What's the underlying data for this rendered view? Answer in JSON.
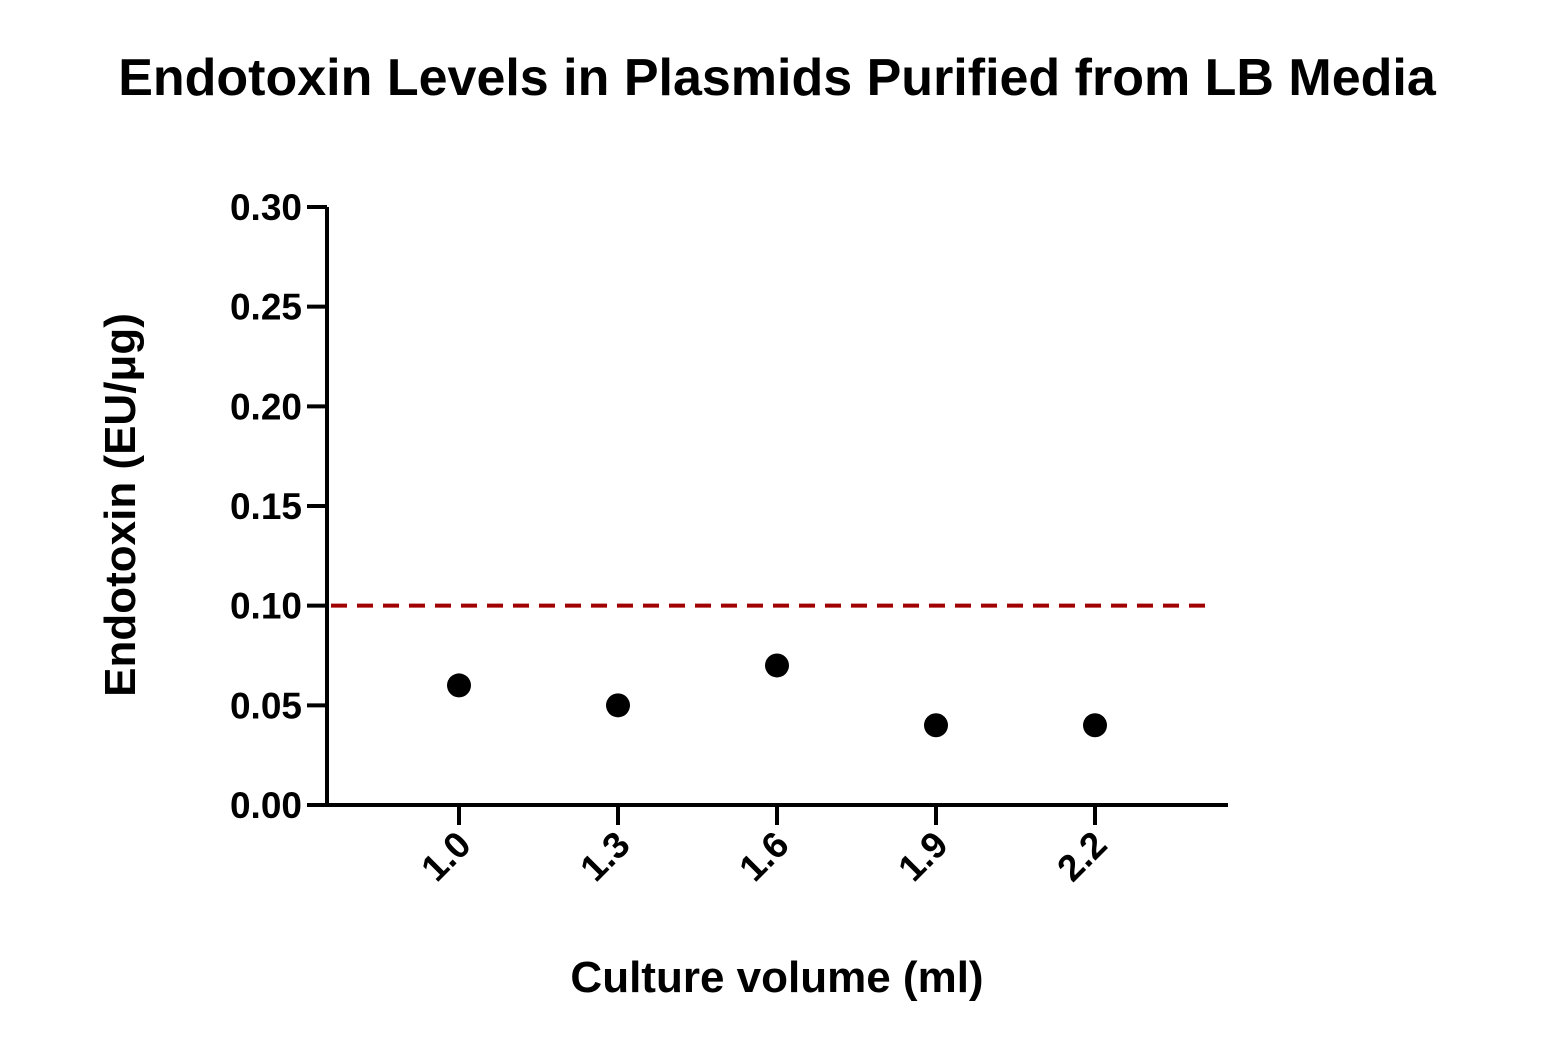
{
  "chart_data": {
    "type": "scatter",
    "title": "Endotoxin Levels in Plasmids Purified from LB Media",
    "xlabel": "Culture volume (ml)",
    "ylabel": "Endotoxin (EU/μg)",
    "categories": [
      "1.0",
      "1.3",
      "1.6",
      "1.9",
      "2.2"
    ],
    "series": [
      {
        "values": [
          0.06,
          0.05,
          0.07,
          0.04,
          0.04
        ]
      }
    ],
    "ylim": [
      0,
      0.3
    ],
    "yticks": [
      "0.00",
      "0.05",
      "0.10",
      "0.15",
      "0.20",
      "0.25",
      "0.30"
    ],
    "reference_line": {
      "y": 0.1,
      "style": "dashed",
      "color": "#a00000"
    },
    "point_color": "#000000",
    "grid": false,
    "legend": "none"
  }
}
